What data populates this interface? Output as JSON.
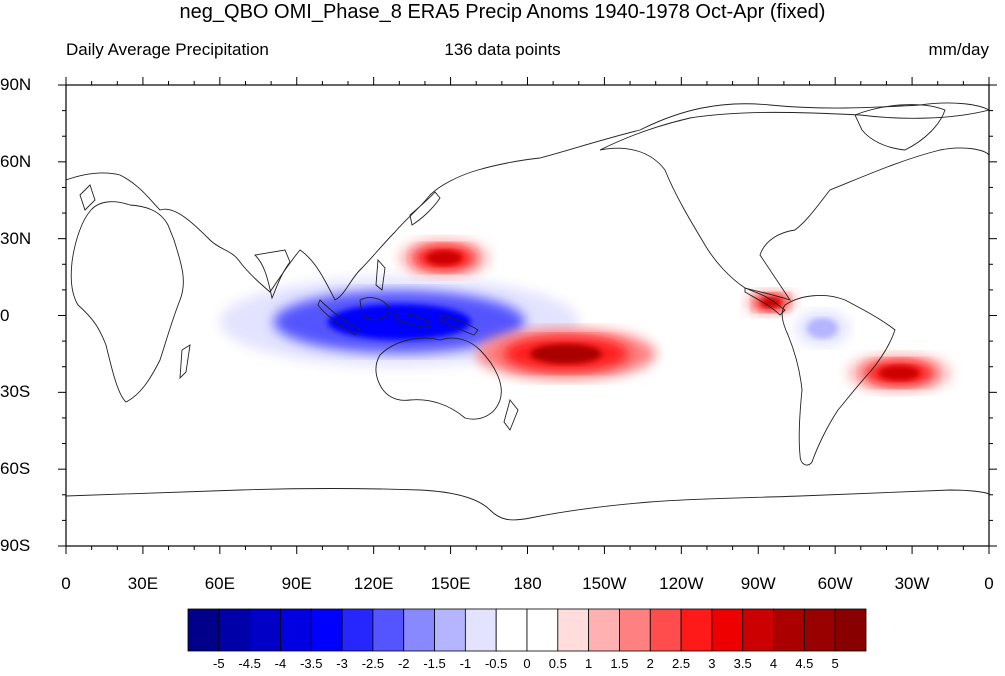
{
  "title": "neg_QBO OMI_Phase_8 ERA5 Precip Anoms 1940-1978 Oct-Apr (fixed)",
  "subtitle_left": "Daily Average Precipitation",
  "subtitle_center": "136 data points",
  "subtitle_right": "mm/day",
  "map": {
    "projection": "cylindrical-equidistant",
    "lon_range": [
      0,
      360
    ],
    "lat_range": [
      -90,
      90
    ],
    "lat_labels": [
      "90N",
      "60N",
      "30N",
      "0",
      "30S",
      "60S",
      "90S"
    ],
    "lat_values": [
      90,
      60,
      30,
      0,
      -30,
      -60,
      -90
    ],
    "lon_labels": [
      "0",
      "30E",
      "60E",
      "90E",
      "120E",
      "150E",
      "180",
      "150W",
      "120W",
      "90W",
      "60W",
      "30W",
      "0"
    ],
    "lon_values": [
      0,
      30,
      60,
      90,
      120,
      150,
      180,
      210,
      240,
      270,
      300,
      330,
      360
    ],
    "anomalies": [
      {
        "region": "maritime-continent-pacific",
        "sign": "negative",
        "lon_min": 60,
        "lon_max": 200,
        "lat_min": -20,
        "lat_max": 15,
        "peak_mm_day": -3.5
      },
      {
        "region": "south-pacific",
        "sign": "positive",
        "lon_min": 160,
        "lon_max": 230,
        "lat_min": -25,
        "lat_max": -5,
        "peak_mm_day": 4.0
      },
      {
        "region": "west-north-pacific",
        "sign": "positive",
        "lon_min": 130,
        "lon_max": 165,
        "lat_min": 15,
        "lat_max": 30,
        "peak_mm_day": 3.5
      },
      {
        "region": "south-america-atlantic",
        "sign": "positive",
        "lon_min": 305,
        "lon_max": 345,
        "lat_min": -30,
        "lat_max": -15,
        "peak_mm_day": 3.5
      },
      {
        "region": "central-america",
        "sign": "positive",
        "lon_min": 265,
        "lon_max": 285,
        "lat_min": 0,
        "lat_max": 10,
        "peak_mm_day": 3.5
      },
      {
        "region": "amazon",
        "sign": "negative",
        "lon_min": 280,
        "lon_max": 310,
        "lat_min": -15,
        "lat_max": 5,
        "peak_mm_day": -1.5
      }
    ]
  },
  "colorbar": {
    "levels": [
      "-5",
      "-4.5",
      "-4",
      "-3.5",
      "-3",
      "-2.5",
      "-2",
      "-1.5",
      "-1",
      "-0.5",
      "0",
      "0.5",
      "1",
      "1.5",
      "2",
      "2.5",
      "3",
      "3.5",
      "4",
      "4.5",
      "5"
    ],
    "colors": [
      "#00008b",
      "#0000a8",
      "#0000c6",
      "#0000e2",
      "#0000ff",
      "#2626ff",
      "#5555ff",
      "#8888ff",
      "#b4b4ff",
      "#e3e3ff",
      "#ffffff",
      "#ffffff",
      "#ffdddd",
      "#ffb0b0",
      "#ff8080",
      "#ff4d4d",
      "#ff1a1a",
      "#ee0000",
      "#cc0000",
      "#aa0000",
      "#990000",
      "#880000"
    ]
  }
}
